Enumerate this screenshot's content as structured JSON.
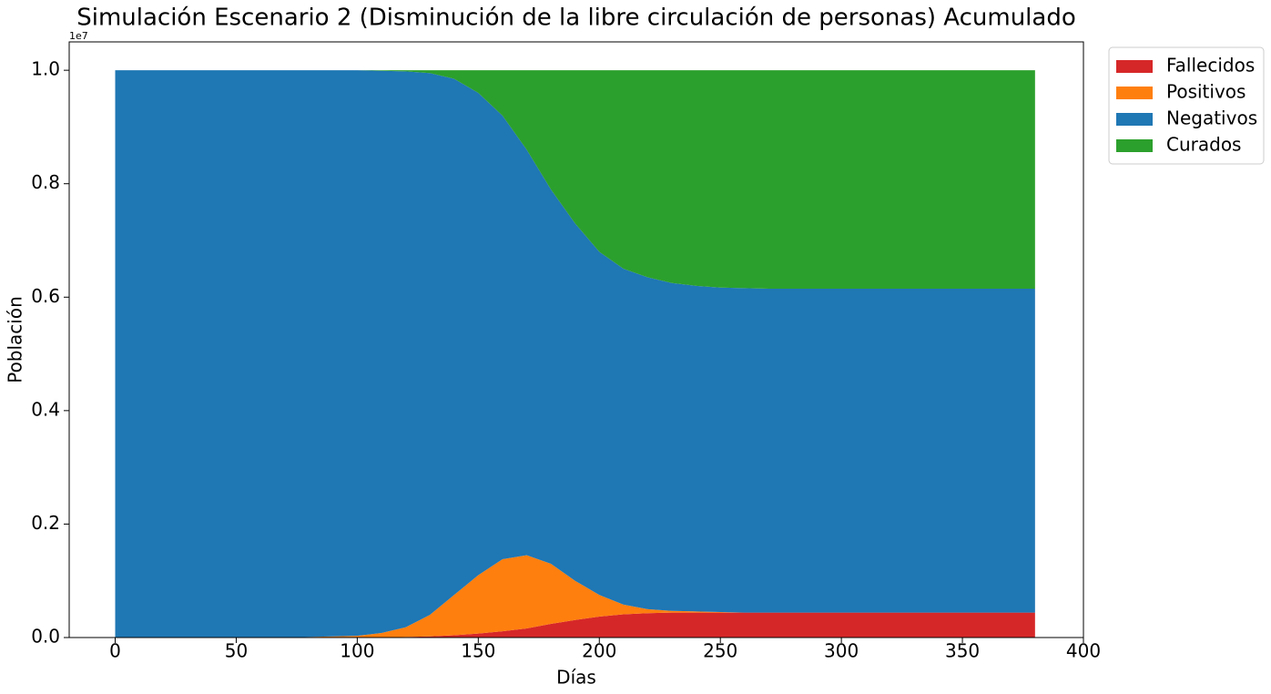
{
  "chart_data": {
    "type": "stackedarea",
    "title": "Simulación Escenario 2 (Disminución de la libre circulación de personas) Acumulado",
    "xlabel": "Días",
    "ylabel": "Población",
    "y_offset_label": "1e7",
    "x": [
      0,
      10,
      20,
      30,
      40,
      50,
      60,
      70,
      80,
      90,
      100,
      110,
      120,
      130,
      140,
      150,
      160,
      170,
      180,
      190,
      200,
      210,
      220,
      230,
      240,
      250,
      260,
      270,
      280,
      290,
      300,
      310,
      320,
      330,
      340,
      350,
      360,
      370,
      380
    ],
    "series": [
      {
        "name": "Fallecidos",
        "color": "#d62728",
        "values": [
          0,
          0,
          0,
          0,
          0,
          0,
          0,
          0,
          0,
          0,
          0,
          0,
          0.001,
          0.002,
          0.004,
          0.007,
          0.011,
          0.016,
          0.024,
          0.031,
          0.037,
          0.041,
          0.043,
          0.044,
          0.044,
          0.044,
          0.044,
          0.044,
          0.044,
          0.044,
          0.044,
          0.044,
          0.044,
          0.044,
          0.044,
          0.044,
          0.044,
          0.044,
          0.044
        ]
      },
      {
        "name": "Positivos",
        "color": "#ff7f0e",
        "values": [
          0,
          0,
          0,
          0,
          0,
          0,
          0,
          0,
          0.001,
          0.002,
          0.003,
          0.008,
          0.017,
          0.038,
          0.071,
          0.103,
          0.127,
          0.129,
          0.106,
          0.069,
          0.038,
          0.017,
          0.007,
          0.003,
          0.002,
          0.001,
          0,
          0,
          0,
          0,
          0,
          0,
          0,
          0,
          0,
          0,
          0,
          0,
          0
        ]
      },
      {
        "name": "Negativos",
        "color": "#1f77b4",
        "values": [
          1,
          1,
          1,
          1,
          1,
          1,
          1,
          1,
          0.999,
          0.998,
          0.997,
          0.991,
          0.98,
          0.955,
          0.91,
          0.85,
          0.782,
          0.715,
          0.66,
          0.63,
          0.605,
          0.592,
          0.585,
          0.578,
          0.574,
          0.572,
          0.572,
          0.571,
          0.571,
          0.571,
          0.571,
          0.571,
          0.571,
          0.571,
          0.571,
          0.571,
          0.571,
          0.571,
          0.571
        ]
      },
      {
        "name": "Curados",
        "color": "#2ca02c",
        "values": [
          0,
          0,
          0,
          0,
          0,
          0,
          0,
          0,
          0,
          0,
          0,
          0.001,
          0.002,
          0.005,
          0.015,
          0.04,
          0.08,
          0.14,
          0.21,
          0.27,
          0.32,
          0.35,
          0.365,
          0.375,
          0.38,
          0.383,
          0.384,
          0.385,
          0.385,
          0.385,
          0.385,
          0.385,
          0.385,
          0.385,
          0.385,
          0.385,
          0.385,
          0.385,
          0.385
        ]
      }
    ],
    "xlim": [
      -19,
      400
    ],
    "xticks": [
      0,
      50,
      100,
      150,
      200,
      250,
      300,
      350,
      400
    ],
    "ylim": [
      0,
      1.05
    ],
    "yticks": [
      {
        "value": 0,
        "label": "0.0"
      },
      0.2,
      0.4,
      0.6,
      0.8,
      {
        "value": 1,
        "label": "1.0"
      }
    ],
    "legend": "outside-upper-right"
  }
}
